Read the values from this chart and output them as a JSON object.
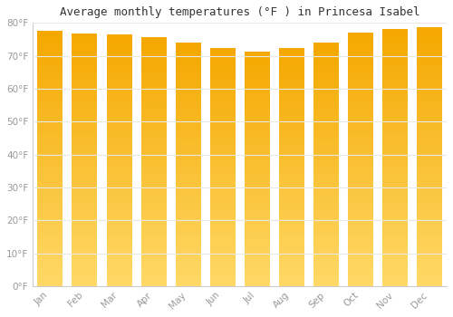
{
  "title": "Average monthly temperatures (°F ) in Princesa Isabel",
  "months": [
    "Jan",
    "Feb",
    "Mar",
    "Apr",
    "May",
    "Jun",
    "Jul",
    "Aug",
    "Sep",
    "Oct",
    "Nov",
    "Dec"
  ],
  "temperatures": [
    77.5,
    76.5,
    76.3,
    75.4,
    74.0,
    72.1,
    71.2,
    72.3,
    74.0,
    76.8,
    78.1,
    78.6
  ],
  "bar_color_top": "#F5A800",
  "bar_color_bottom": "#FFD966",
  "ylim": [
    0,
    80
  ],
  "yticks": [
    0,
    10,
    20,
    30,
    40,
    50,
    60,
    70,
    80
  ],
  "ytick_labels": [
    "0°F",
    "10°F",
    "20°F",
    "30°F",
    "40°F",
    "50°F",
    "60°F",
    "70°F",
    "80°F"
  ],
  "background_color": "#FFFFFF",
  "plot_bg_color": "#FFFFFF",
  "grid_color": "#E8E8E8",
  "title_fontsize": 9,
  "tick_fontsize": 7.5,
  "tick_color": "#999999",
  "bar_edge_color": "#CCCCCC",
  "bar_width": 0.72
}
